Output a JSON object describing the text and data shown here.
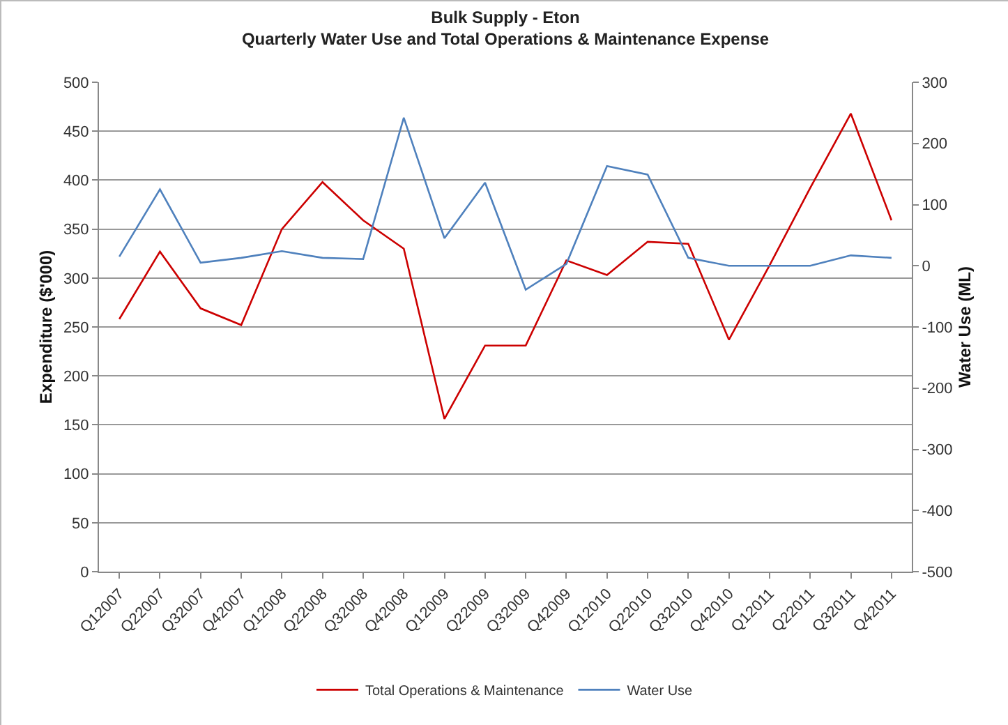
{
  "chart_data": {
    "type": "line",
    "title": "Bulk Supply - Eton\nQuarterly Water Use and Total Operations & Maintenance Expense",
    "categories": [
      "Q12007",
      "Q22007",
      "Q32007",
      "Q42007",
      "Q12008",
      "Q22008",
      "Q32008",
      "Q42008",
      "Q12009",
      "Q22009",
      "Q32009",
      "Q42009",
      "Q12010",
      "Q22010",
      "Q32010",
      "Q42010",
      "Q12011",
      "Q22011",
      "Q32011",
      "Q42011"
    ],
    "series": [
      {
        "name": "Total Operations & Maintenance",
        "color": "#cc0000",
        "values": [
          258,
          327,
          269,
          252,
          350,
          398,
          359,
          330,
          156,
          231,
          231,
          318,
          303,
          337,
          335,
          237,
          313,
          392,
          468,
          359
        ]
      },
      {
        "name": "Water Use",
        "color": "#4f81bd",
        "axis": "y2",
        "values": [
          15,
          125,
          5,
          13,
          24,
          13,
          11,
          242,
          45,
          136,
          -39,
          3,
          163,
          149,
          13,
          0,
          0,
          0,
          17,
          13
        ]
      }
    ],
    "ylabel": "Expenditure ($'000)",
    "y2label": "Water Use (ML)",
    "ylim": [
      0,
      500
    ],
    "yticks": [
      0,
      50,
      100,
      150,
      200,
      250,
      300,
      350,
      400,
      450,
      500
    ],
    "y2lim": [
      -500,
      300
    ],
    "y2ticks": [
      -500,
      -400,
      -300,
      -200,
      -100,
      0,
      100,
      200,
      300
    ],
    "grid": "y",
    "legend": "bottom",
    "marker": "none",
    "line_style": "solid"
  }
}
